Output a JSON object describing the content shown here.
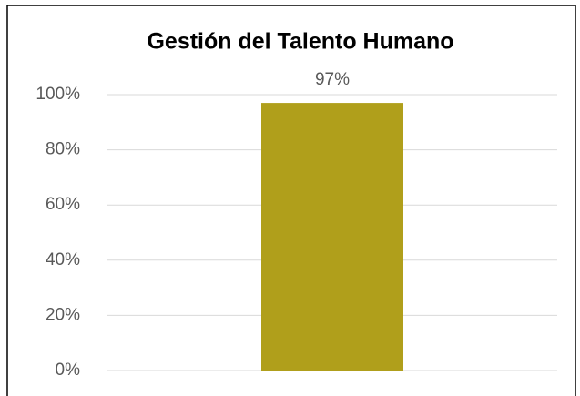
{
  "chart_data": {
    "type": "bar",
    "title": "Gestión del Talento Humano",
    "categories": [
      null
    ],
    "values": [
      97
    ],
    "value_labels": [
      "97%"
    ],
    "color": "#b09f1b",
    "ylim": [
      0,
      100
    ],
    "yticks": [
      {
        "value": 0,
        "label": "0%"
      },
      {
        "value": 20,
        "label": "20%"
      },
      {
        "value": 40,
        "label": "40%"
      },
      {
        "value": 60,
        "label": "60%"
      },
      {
        "value": 80,
        "label": "80%"
      },
      {
        "value": 100,
        "label": "100%"
      }
    ],
    "grid": true
  }
}
